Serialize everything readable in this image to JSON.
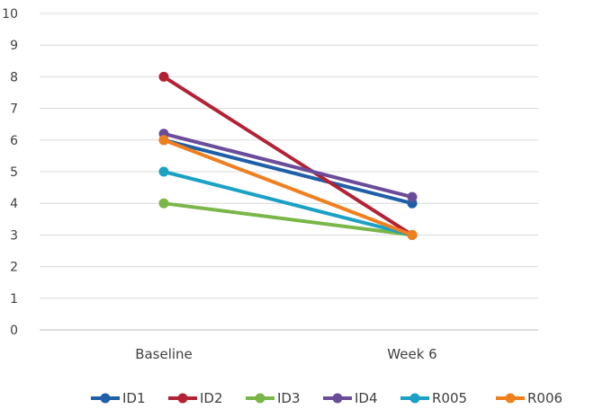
{
  "chart_data": {
    "type": "line",
    "categories": [
      "Baseline",
      "Week 6"
    ],
    "ylim": [
      0,
      10
    ],
    "yticks": [
      0,
      1,
      2,
      3,
      4,
      5,
      6,
      7,
      8,
      9,
      10
    ],
    "grid": true,
    "legend_position": "bottom",
    "series": [
      {
        "name": "ID1",
        "values": [
          6,
          4
        ],
        "color": "#1F5FA8"
      },
      {
        "name": "ID2",
        "values": [
          8,
          3
        ],
        "color": "#B22234"
      },
      {
        "name": "ID3",
        "values": [
          4,
          3
        ],
        "color": "#7AB648"
      },
      {
        "name": "ID4",
        "values": [
          6.2,
          4.2
        ],
        "color": "#6B4C9A"
      },
      {
        "name": "R005",
        "values": [
          5,
          3
        ],
        "color": "#1BA1C4"
      },
      {
        "name": "R006",
        "values": [
          6,
          3
        ],
        "color": "#F07F1E"
      }
    ]
  }
}
